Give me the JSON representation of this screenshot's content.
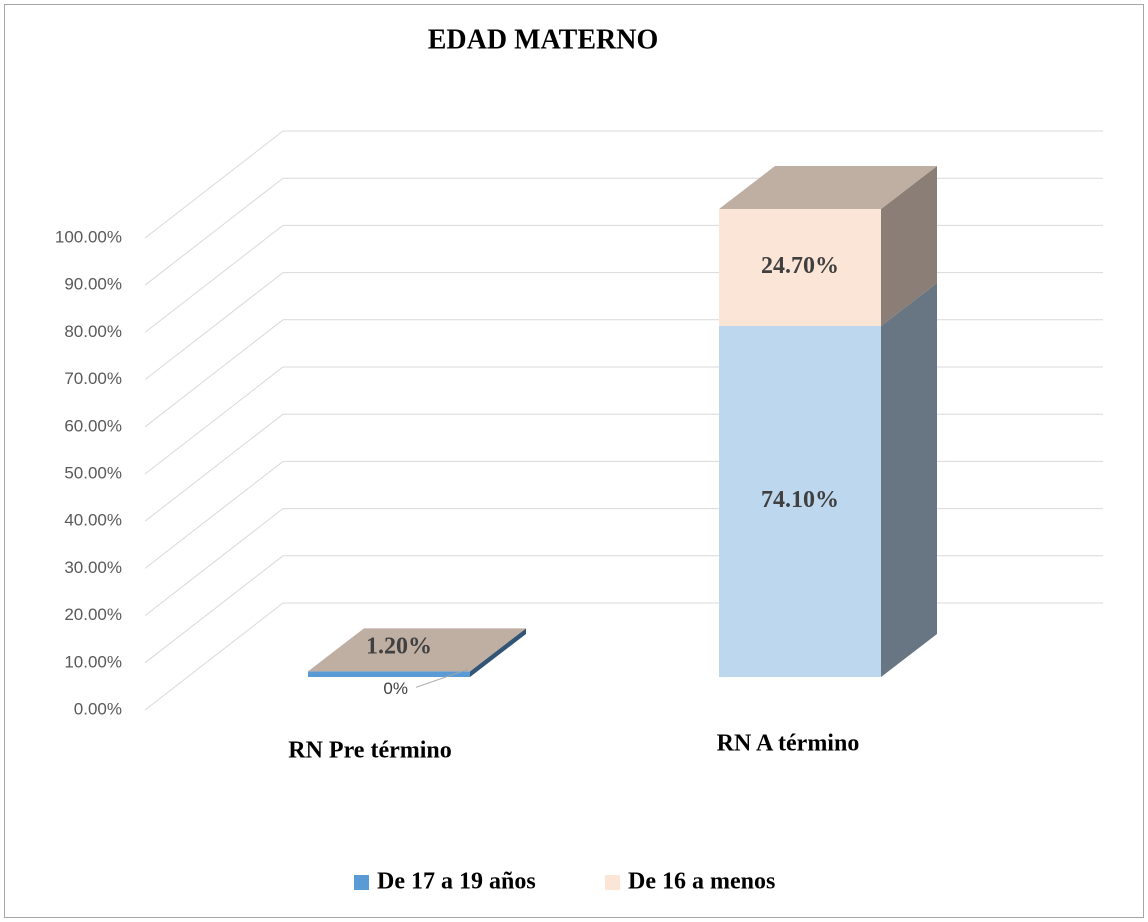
{
  "chart_data": {
    "type": "bar3d_stacked",
    "title": "EDAD MATERNO",
    "categories": [
      "RN Pre término",
      "RN A término"
    ],
    "series": [
      {
        "name": "De 17 a 19 años",
        "color": "#5b9bd5",
        "point_colors": [
          "#5b9bd5",
          "#bdd7ee"
        ],
        "values": [
          1.2,
          74.1
        ],
        "value_labels": [
          "1.20%",
          "74.10%"
        ]
      },
      {
        "name": "De 16 a menos",
        "color": "#fbe5d6",
        "values": [
          0,
          24.7
        ],
        "value_labels": [
          "0%",
          "24.70%"
        ]
      }
    ],
    "ylim": [
      0,
      100
    ],
    "yticks": [
      {
        "value": 0,
        "label": "0.00%"
      },
      {
        "value": 10,
        "label": "10.00%"
      },
      {
        "value": 20,
        "label": "20.00%"
      },
      {
        "value": 30,
        "label": "30.00%"
      },
      {
        "value": 40,
        "label": "40.00%"
      },
      {
        "value": 50,
        "label": "50.00%"
      },
      {
        "value": 60,
        "label": "60.00%"
      },
      {
        "value": 70,
        "label": "70.00%"
      },
      {
        "value": 80,
        "label": "80.00%"
      },
      {
        "value": 90,
        "label": "90.00%"
      },
      {
        "value": 100,
        "label": "100.00%"
      }
    ],
    "grid": true,
    "legend": "bottom"
  }
}
